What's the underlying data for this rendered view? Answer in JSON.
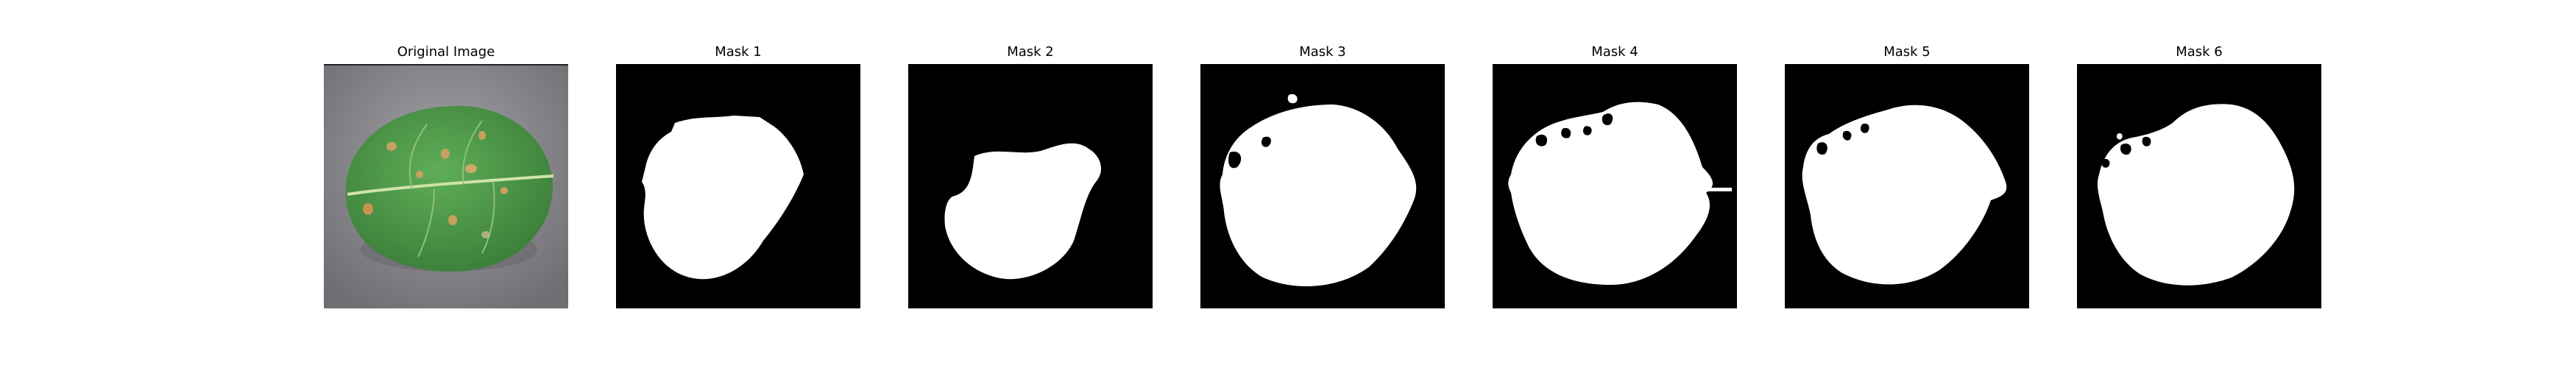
{
  "figure": {
    "panels": [
      {
        "title": "Original Image",
        "kind": "photo"
      },
      {
        "title": "Mask 1",
        "kind": "mask"
      },
      {
        "title": "Mask 2",
        "kind": "mask"
      },
      {
        "title": "Mask 3",
        "kind": "mask"
      },
      {
        "title": "Mask 4",
        "kind": "mask"
      },
      {
        "title": "Mask 5",
        "kind": "mask"
      },
      {
        "title": "Mask 6",
        "kind": "mask"
      }
    ]
  },
  "colors": {
    "mask_background": "#000000",
    "mask_foreground": "#ffffff",
    "leaf_green": "#4f9a4a",
    "photo_background": "#8a8a8f",
    "spot_color": "#c8a060"
  },
  "icons": [
    "leaf-image",
    "binary-mask-image"
  ]
}
